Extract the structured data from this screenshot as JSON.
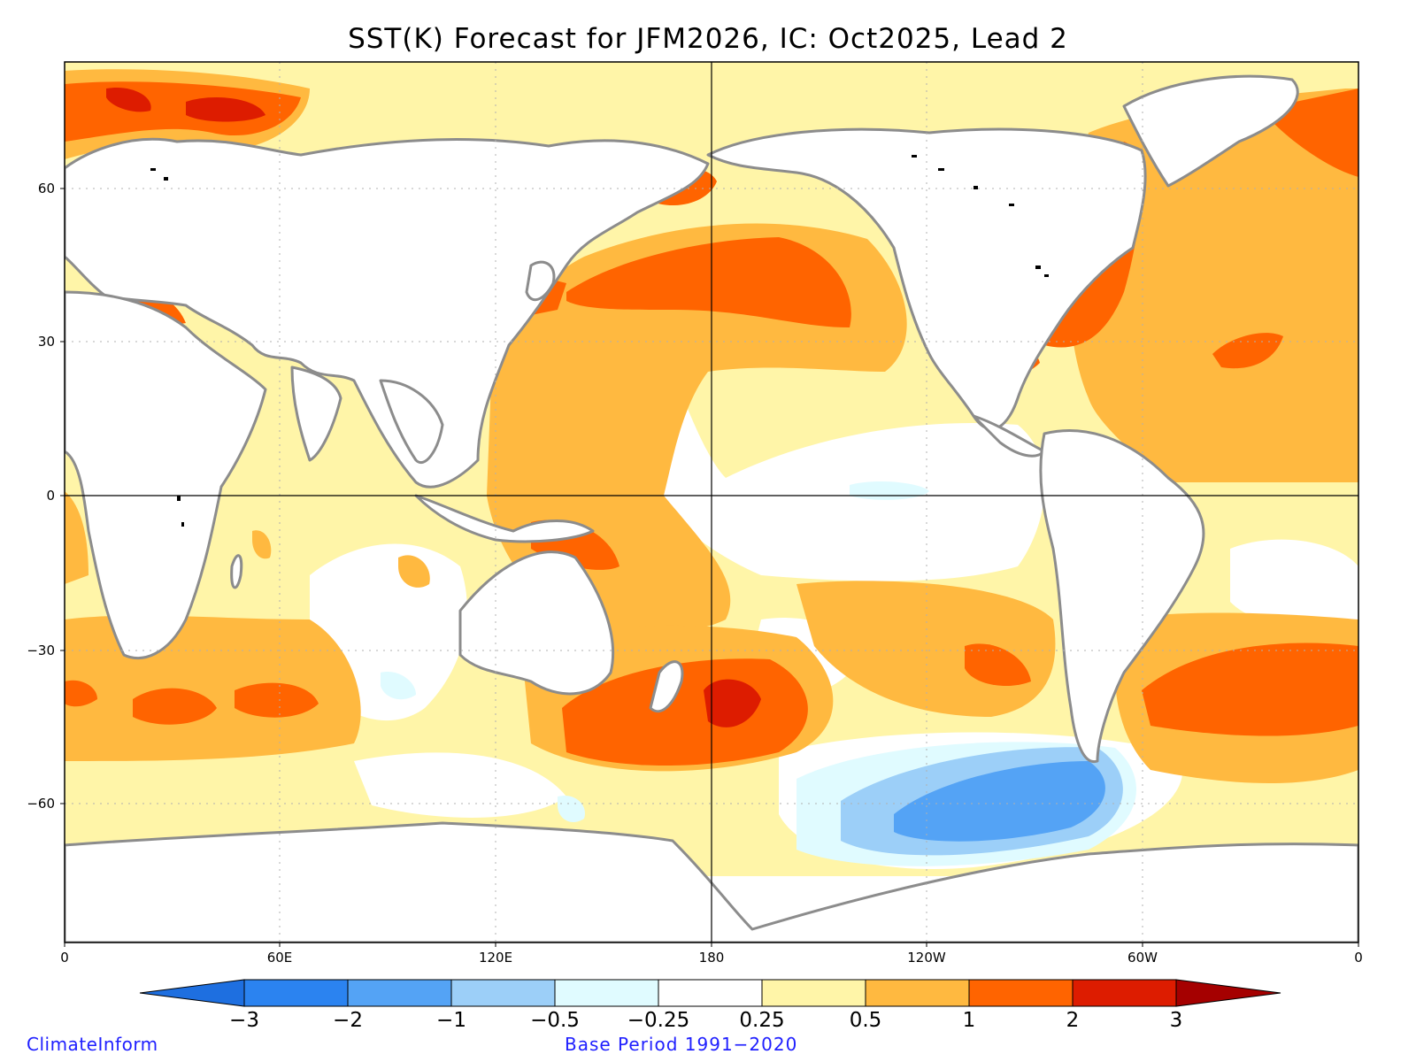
{
  "title": "SST(K) Forecast for JFM2026, IC: Oct2025, Lead 2",
  "axes": {
    "lat_ticks": [
      "60",
      "30",
      "0",
      "−30",
      "−60"
    ],
    "lon_ticks": [
      "0",
      "60E",
      "120E",
      "180",
      "120W",
      "60W",
      "0"
    ]
  },
  "colorbar": {
    "labels": [
      "−3",
      "−2",
      "−1",
      "−0.5",
      "−0.25",
      "0.25",
      "0.5",
      "1",
      "2",
      "3"
    ],
    "colors": [
      "#1e6fe0",
      "#2b83f0",
      "#54a3f5",
      "#9ccff8",
      "#e0fbff",
      "#ffffff",
      "#fff5a8",
      "#ffb940",
      "#ff6400",
      "#dd1c00",
      "#a50000"
    ]
  },
  "palette": {
    "land": "#ffffff",
    "coast": "#8c8c8c",
    "lakes": "#000000",
    "grid": "#b0b0b0"
  },
  "footer": {
    "left": "ClimateInform",
    "center": "Base Period 1991−2020"
  }
}
